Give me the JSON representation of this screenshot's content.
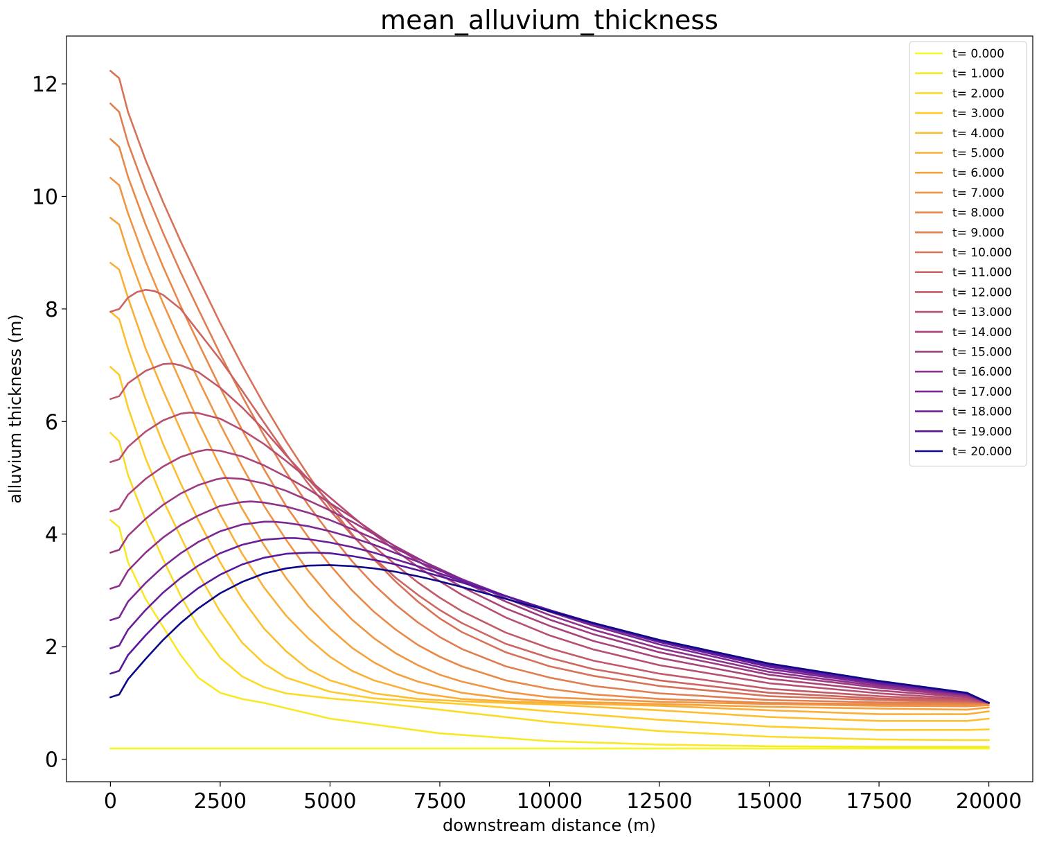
{
  "chart_data": {
    "type": "line",
    "title": "mean_alluvium_thickness",
    "xlabel": "downstream distance (m)",
    "ylabel": "alluvium thickness (m)",
    "xlim": [
      -1000,
      21000
    ],
    "ylim": [
      -0.4,
      12.85
    ],
    "xticks": [
      0,
      2500,
      5000,
      7500,
      10000,
      12500,
      15000,
      17500,
      20000
    ],
    "yticks": [
      0,
      2,
      4,
      6,
      8,
      10,
      12
    ],
    "xtick_labels": [
      "0",
      "2500",
      "5000",
      "7500",
      "10000",
      "12500",
      "15000",
      "17500",
      "20000"
    ],
    "ytick_labels": [
      "0",
      "2",
      "4",
      "6",
      "8",
      "10",
      "12"
    ],
    "grid": false,
    "legend_position": "top-right",
    "colormap": "plasma",
    "series": [
      {
        "name": "t= 0.000",
        "color": "#f0f921",
        "x": [
          0,
          20000
        ],
        "y": [
          0.19,
          0.19
        ]
      },
      {
        "name": "t= 1.000",
        "color": "#f8e826",
        "x": [
          0,
          200,
          400,
          800,
          1200,
          1600,
          2000,
          2500,
          3000,
          3500,
          5000,
          7500,
          10000,
          12500,
          15000,
          17500,
          19500,
          20000
        ],
        "y": [
          4.25,
          4.12,
          3.5,
          2.85,
          2.35,
          1.85,
          1.45,
          1.18,
          1.07,
          1.0,
          0.72,
          0.46,
          0.32,
          0.26,
          0.23,
          0.22,
          0.22,
          0.22
        ]
      },
      {
        "name": "t= 2.000",
        "color": "#fcdb28",
        "x": [
          0,
          200,
          400,
          800,
          1200,
          1600,
          2000,
          2500,
          3000,
          3500,
          4000,
          5000,
          6000,
          7500,
          10000,
          12500,
          15000,
          17500,
          19500,
          20000
        ],
        "y": [
          5.8,
          5.65,
          5.05,
          4.25,
          3.55,
          2.9,
          2.35,
          1.8,
          1.47,
          1.28,
          1.17,
          1.08,
          1.01,
          0.88,
          0.66,
          0.5,
          0.4,
          0.35,
          0.34,
          0.34
        ]
      },
      {
        "name": "t= 3.000",
        "color": "#fdcc2a",
        "x": [
          0,
          200,
          400,
          800,
          1200,
          1600,
          2000,
          2500,
          3000,
          3500,
          4000,
          5000,
          6000,
          7000,
          8000,
          10000,
          12500,
          15000,
          17500,
          19500,
          20000
        ],
        "y": [
          6.97,
          6.83,
          6.25,
          5.35,
          4.6,
          3.95,
          3.3,
          2.62,
          2.07,
          1.7,
          1.45,
          1.2,
          1.08,
          1.03,
          0.98,
          0.85,
          0.7,
          0.58,
          0.52,
          0.52,
          0.53
        ]
      },
      {
        "name": "t= 4.000",
        "color": "#fcbe30",
        "x": [
          0,
          200,
          400,
          800,
          1200,
          1600,
          2000,
          2500,
          3000,
          3500,
          4000,
          4500,
          5000,
          6000,
          7000,
          8000,
          9000,
          10000,
          12500,
          15000,
          17500,
          19500,
          20000
        ],
        "y": [
          7.95,
          7.82,
          7.3,
          6.4,
          5.6,
          4.9,
          4.25,
          3.5,
          2.85,
          2.32,
          1.92,
          1.6,
          1.4,
          1.17,
          1.07,
          1.03,
          1.0,
          0.97,
          0.87,
          0.75,
          0.68,
          0.68,
          0.72
        ]
      },
      {
        "name": "t= 5.000",
        "color": "#faaf37",
        "x": [
          0,
          200,
          400,
          800,
          1200,
          1600,
          2000,
          2500,
          3000,
          3500,
          4000,
          4500,
          5000,
          5500,
          6000,
          7000,
          8000,
          9000,
          10000,
          12500,
          15000,
          17500,
          19500,
          20000
        ],
        "y": [
          8.82,
          8.7,
          8.2,
          7.3,
          6.55,
          5.85,
          5.15,
          4.35,
          3.65,
          3.05,
          2.55,
          2.15,
          1.82,
          1.57,
          1.4,
          1.18,
          1.07,
          1.03,
          1.0,
          0.95,
          0.87,
          0.8,
          0.8,
          0.85
        ]
      },
      {
        "name": "t= 6.000",
        "color": "#f5a13c",
        "x": [
          0,
          200,
          400,
          800,
          1200,
          1600,
          2000,
          2500,
          3000,
          3500,
          4000,
          4500,
          5000,
          5500,
          6000,
          6500,
          7000,
          8000,
          9000,
          10000,
          12500,
          15000,
          17500,
          19500,
          20000
        ],
        "y": [
          9.62,
          9.5,
          9.0,
          8.15,
          7.4,
          6.7,
          6.0,
          5.2,
          4.45,
          3.8,
          3.22,
          2.72,
          2.32,
          1.98,
          1.72,
          1.52,
          1.38,
          1.18,
          1.08,
          1.03,
          0.98,
          0.93,
          0.9,
          0.88,
          0.92
        ]
      },
      {
        "name": "t= 7.000",
        "color": "#ef9543",
        "x": [
          0,
          200,
          400,
          800,
          1200,
          1600,
          2000,
          2500,
          3000,
          3500,
          4000,
          4500,
          5000,
          5500,
          6000,
          6500,
          7000,
          7500,
          8000,
          9000,
          10000,
          12500,
          15000,
          17500,
          19500,
          20000
        ],
        "y": [
          10.33,
          10.2,
          9.7,
          8.85,
          8.1,
          7.4,
          6.75,
          5.95,
          5.2,
          4.5,
          3.9,
          3.35,
          2.88,
          2.48,
          2.15,
          1.88,
          1.67,
          1.5,
          1.38,
          1.2,
          1.1,
          1.02,
          0.98,
          0.95,
          0.94,
          0.96
        ]
      },
      {
        "name": "t= 8.000",
        "color": "#e8894a",
        "x": [
          0,
          200,
          400,
          800,
          1200,
          1600,
          2000,
          2500,
          3000,
          3500,
          4000,
          4500,
          5000,
          5500,
          6000,
          6500,
          7000,
          7500,
          8000,
          9000,
          10000,
          11000,
          12500,
          15000,
          17500,
          19500,
          20000
        ],
        "y": [
          11.02,
          10.88,
          10.35,
          9.5,
          8.75,
          8.05,
          7.4,
          6.6,
          5.85,
          5.15,
          4.5,
          3.95,
          3.45,
          3.0,
          2.62,
          2.3,
          2.03,
          1.82,
          1.65,
          1.4,
          1.25,
          1.15,
          1.07,
          1.0,
          0.98,
          0.97,
          0.99
        ]
      },
      {
        "name": "t= 9.000",
        "color": "#e07d51",
        "x": [
          0,
          200,
          400,
          800,
          1200,
          1600,
          2000,
          2500,
          3000,
          3500,
          4000,
          4500,
          5000,
          5500,
          6000,
          6500,
          7000,
          7500,
          8000,
          9000,
          10000,
          11000,
          12500,
          15000,
          17500,
          19500,
          20000
        ],
        "y": [
          11.65,
          11.5,
          10.95,
          10.1,
          9.35,
          8.65,
          8.0,
          7.2,
          6.45,
          5.75,
          5.1,
          4.52,
          4.0,
          3.52,
          3.1,
          2.74,
          2.43,
          2.17,
          1.96,
          1.65,
          1.45,
          1.3,
          1.17,
          1.05,
          1.01,
          1.0,
          1.0
        ]
      },
      {
        "name": "t= 10.000",
        "color": "#d77158",
        "x": [
          0,
          200,
          400,
          800,
          1200,
          1600,
          2000,
          2500,
          3000,
          3500,
          4000,
          4500,
          5000,
          5500,
          6000,
          6500,
          7000,
          7500,
          8000,
          9000,
          10000,
          11000,
          12500,
          15000,
          17500,
          19500,
          20000
        ],
        "y": [
          12.23,
          12.1,
          11.5,
          10.65,
          9.9,
          9.2,
          8.55,
          7.75,
          7.0,
          6.3,
          5.65,
          5.05,
          4.5,
          4.0,
          3.55,
          3.15,
          2.8,
          2.5,
          2.26,
          1.9,
          1.65,
          1.48,
          1.3,
          1.12,
          1.05,
          1.02,
          1.0
        ]
      },
      {
        "name": "t= 11.000",
        "color": "#cd6560",
        "x": [
          0,
          200,
          400,
          600,
          800,
          1000,
          1200,
          1600,
          2000,
          2500,
          3000,
          3500,
          4000,
          4500,
          5000,
          5500,
          6000,
          6500,
          7000,
          7500,
          8000,
          9000,
          10000,
          11000,
          12500,
          15000,
          17500,
          19500,
          20000
        ],
        "y": [
          7.95,
          8.0,
          8.2,
          8.3,
          8.34,
          8.32,
          8.25,
          8.0,
          7.6,
          7.1,
          6.55,
          5.98,
          5.42,
          4.9,
          4.42,
          3.98,
          3.58,
          3.22,
          2.92,
          2.65,
          2.42,
          2.05,
          1.8,
          1.6,
          1.4,
          1.18,
          1.08,
          1.03,
          1.0
        ]
      },
      {
        "name": "t= 12.000",
        "color": "#c25a68",
        "x": [
          0,
          200,
          400,
          800,
          1200,
          1400,
          1600,
          2000,
          2500,
          3000,
          3500,
          4000,
          4500,
          5000,
          5500,
          6000,
          6500,
          7000,
          7500,
          8000,
          9000,
          10000,
          11000,
          12500,
          15000,
          17500,
          19500,
          20000
        ],
        "y": [
          6.4,
          6.45,
          6.68,
          6.9,
          7.02,
          7.03,
          7.0,
          6.88,
          6.6,
          6.25,
          5.85,
          5.4,
          4.98,
          4.55,
          4.15,
          3.78,
          3.45,
          3.14,
          2.87,
          2.63,
          2.25,
          1.97,
          1.75,
          1.52,
          1.25,
          1.12,
          1.05,
          1.0
        ]
      },
      {
        "name": "t= 13.000",
        "color": "#b74f71",
        "x": [
          0,
          200,
          400,
          800,
          1200,
          1600,
          1800,
          2000,
          2500,
          3000,
          3500,
          4000,
          4500,
          5000,
          5500,
          6000,
          6500,
          7000,
          7500,
          8000,
          9000,
          10000,
          11000,
          12500,
          15000,
          17500,
          19500,
          20000
        ],
        "y": [
          5.28,
          5.33,
          5.55,
          5.82,
          6.02,
          6.14,
          6.16,
          6.15,
          6.05,
          5.85,
          5.6,
          5.3,
          4.98,
          4.65,
          4.32,
          4.0,
          3.7,
          3.42,
          3.16,
          2.92,
          2.52,
          2.2,
          1.95,
          1.67,
          1.35,
          1.17,
          1.07,
          1.0
        ]
      },
      {
        "name": "t= 14.000",
        "color": "#aa4479",
        "x": [
          0,
          200,
          400,
          800,
          1200,
          1600,
          2000,
          2200,
          2500,
          3000,
          3500,
          4000,
          4500,
          5000,
          5500,
          6000,
          6500,
          7000,
          7500,
          8000,
          9000,
          10000,
          11000,
          12500,
          15000,
          17500,
          19500,
          20000
        ],
        "y": [
          4.4,
          4.45,
          4.7,
          4.98,
          5.2,
          5.37,
          5.47,
          5.5,
          5.48,
          5.38,
          5.22,
          5.02,
          4.8,
          4.55,
          4.3,
          4.03,
          3.77,
          3.52,
          3.28,
          3.06,
          2.68,
          2.37,
          2.1,
          1.8,
          1.43,
          1.22,
          1.1,
          1.0
        ]
      },
      {
        "name": "t= 15.000",
        "color": "#9c3a82",
        "x": [
          0,
          200,
          400,
          800,
          1200,
          1600,
          2000,
          2400,
          2600,
          3000,
          3500,
          4000,
          4500,
          5000,
          5500,
          6000,
          6500,
          7000,
          7500,
          8000,
          9000,
          10000,
          11000,
          12500,
          15000,
          17500,
          19500,
          20000
        ],
        "y": [
          3.67,
          3.72,
          3.97,
          4.27,
          4.52,
          4.72,
          4.87,
          4.97,
          5.0,
          4.98,
          4.9,
          4.77,
          4.6,
          4.42,
          4.22,
          4.0,
          3.78,
          3.57,
          3.36,
          3.16,
          2.8,
          2.48,
          2.22,
          1.9,
          1.5,
          1.27,
          1.12,
          1.0
        ]
      },
      {
        "name": "t= 16.000",
        "color": "#8d318b",
        "x": [
          0,
          200,
          400,
          800,
          1200,
          1600,
          2000,
          2500,
          3000,
          3200,
          3500,
          4000,
          4500,
          5000,
          5500,
          6000,
          6500,
          7000,
          7500,
          8000,
          9000,
          10000,
          11000,
          12500,
          15000,
          17500,
          19500,
          20000
        ],
        "y": [
          3.03,
          3.08,
          3.35,
          3.67,
          3.94,
          4.16,
          4.33,
          4.5,
          4.57,
          4.58,
          4.56,
          4.49,
          4.38,
          4.25,
          4.09,
          3.92,
          3.74,
          3.56,
          3.38,
          3.2,
          2.86,
          2.56,
          2.3,
          1.97,
          1.55,
          1.3,
          1.14,
          1.0
        ]
      },
      {
        "name": "t= 17.000",
        "color": "#7c2893",
        "x": [
          0,
          200,
          400,
          800,
          1200,
          1600,
          2000,
          2500,
          3000,
          3500,
          3700,
          4000,
          4500,
          5000,
          5500,
          6000,
          6500,
          7000,
          7500,
          8000,
          9000,
          10000,
          11000,
          12500,
          15000,
          17500,
          19500,
          20000
        ],
        "y": [
          2.47,
          2.52,
          2.8,
          3.13,
          3.42,
          3.66,
          3.86,
          4.05,
          4.17,
          4.22,
          4.22,
          4.2,
          4.14,
          4.05,
          3.94,
          3.81,
          3.66,
          3.51,
          3.35,
          3.2,
          2.9,
          2.62,
          2.37,
          2.04,
          1.6,
          1.33,
          1.15,
          1.0
        ]
      },
      {
        "name": "t= 18.000",
        "color": "#6a1f9a",
        "x": [
          0,
          200,
          400,
          800,
          1200,
          1600,
          2000,
          2500,
          3000,
          3500,
          4000,
          4200,
          4500,
          5000,
          5500,
          6000,
          6500,
          7000,
          7500,
          8000,
          9000,
          10000,
          11000,
          12500,
          15000,
          17500,
          19500,
          20000
        ],
        "y": [
          1.97,
          2.02,
          2.3,
          2.65,
          2.96,
          3.22,
          3.44,
          3.66,
          3.81,
          3.9,
          3.93,
          3.93,
          3.91,
          3.85,
          3.77,
          3.67,
          3.55,
          3.43,
          3.3,
          3.17,
          2.9,
          2.64,
          2.4,
          2.08,
          1.64,
          1.35,
          1.16,
          1.0
        ]
      },
      {
        "name": "t= 19.000",
        "color": "#56179e",
        "x": [
          0,
          200,
          400,
          800,
          1200,
          1600,
          2000,
          2500,
          3000,
          3500,
          4000,
          4500,
          4700,
          5000,
          5500,
          6000,
          6500,
          7000,
          7500,
          8000,
          9000,
          10000,
          11000,
          12500,
          15000,
          17500,
          19500,
          20000
        ],
        "y": [
          1.52,
          1.57,
          1.85,
          2.2,
          2.52,
          2.8,
          3.04,
          3.28,
          3.46,
          3.58,
          3.65,
          3.67,
          3.67,
          3.66,
          3.61,
          3.54,
          3.46,
          3.36,
          3.25,
          3.14,
          2.9,
          2.65,
          2.42,
          2.1,
          1.67,
          1.37,
          1.17,
          1.0
        ]
      },
      {
        "name": "t= 20.000",
        "color": "#0d0887",
        "x": [
          0,
          200,
          400,
          800,
          1200,
          1600,
          2000,
          2500,
          3000,
          3500,
          4000,
          4500,
          5000,
          5500,
          6000,
          6500,
          7000,
          7500,
          8000,
          9000,
          10000,
          11000,
          12500,
          15000,
          17500,
          19500,
          20000
        ],
        "y": [
          1.1,
          1.15,
          1.42,
          1.78,
          2.12,
          2.42,
          2.68,
          2.95,
          3.15,
          3.3,
          3.39,
          3.44,
          3.45,
          3.43,
          3.39,
          3.33,
          3.25,
          3.16,
          3.06,
          2.85,
          2.63,
          2.42,
          2.12,
          1.7,
          1.39,
          1.18,
          1.0
        ]
      }
    ]
  }
}
